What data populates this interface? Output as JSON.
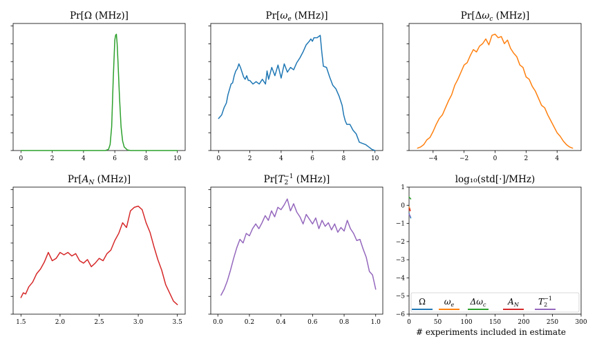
{
  "colors": {
    "blue": "#1f77b4",
    "orange": "#ff7f0e",
    "green": "#2ca02c",
    "red": "#d62728",
    "purple": "#9467bd"
  },
  "xlabel_bottom": "# experiments included in estimate",
  "chart_data": [
    {
      "type": "line",
      "title_parts": [
        "Pr[Ω (MHz)]"
      ],
      "xlim": [
        -0.5,
        10.5
      ],
      "ylim": [
        0,
        1.07
      ],
      "xticks": [
        "0",
        "2",
        "4",
        "6",
        "8",
        "10"
      ],
      "xtick_values": [
        0,
        2,
        4,
        6,
        8,
        10
      ],
      "yticks_count": 8,
      "color": "#2ca02c",
      "x": [
        0,
        5.4,
        5.6,
        5.7,
        5.8,
        5.9,
        6.0,
        6.05,
        6.1,
        6.15,
        6.2,
        6.3,
        6.4,
        6.5,
        6.6,
        6.8,
        7.0,
        10
      ],
      "y": [
        0,
        0,
        0.01,
        0.05,
        0.2,
        0.6,
        0.93,
        0.97,
        0.98,
        0.9,
        0.76,
        0.45,
        0.2,
        0.08,
        0.03,
        0.005,
        0,
        0
      ]
    },
    {
      "type": "line",
      "title_parts": [
        "Pr[",
        "ω",
        "e",
        " (MHz)]"
      ],
      "xlim": [
        -0.5,
        10.5
      ],
      "ylim": [
        0,
        1.07
      ],
      "xticks": [
        "0",
        "2",
        "4",
        "6",
        "8",
        "10"
      ],
      "xtick_values": [
        0,
        2,
        4,
        6,
        8,
        10
      ],
      "yticks_count": 8,
      "color": "#1f77b4",
      "x": [
        0,
        0.2,
        0.35,
        0.5,
        0.6,
        0.8,
        0.9,
        1.0,
        1.1,
        1.2,
        1.3,
        1.4,
        1.5,
        1.6,
        1.7,
        1.8,
        1.9,
        2.0,
        2.2,
        2.4,
        2.6,
        2.8,
        3.0,
        3.1,
        3.2,
        3.4,
        3.6,
        3.8,
        4.0,
        4.2,
        4.4,
        4.6,
        4.8,
        5.0,
        5.2,
        5.4,
        5.6,
        5.8,
        5.9,
        6.0,
        6.1,
        6.3,
        6.5,
        6.6,
        6.7,
        6.9,
        7.1,
        7.3,
        7.5,
        7.7,
        7.9,
        8.0,
        8.1,
        8.2,
        8.4,
        8.6,
        8.8,
        9.0,
        9.2,
        9.4,
        9.6,
        9.8,
        10.0
      ],
      "y": [
        0.27,
        0.3,
        0.36,
        0.4,
        0.47,
        0.56,
        0.57,
        0.63,
        0.67,
        0.69,
        0.73,
        0.7,
        0.66,
        0.62,
        0.6,
        0.63,
        0.59,
        0.59,
        0.56,
        0.58,
        0.56,
        0.6,
        0.56,
        0.67,
        0.6,
        0.7,
        0.63,
        0.72,
        0.61,
        0.73,
        0.66,
        0.7,
        0.68,
        0.74,
        0.78,
        0.83,
        0.89,
        0.92,
        0.94,
        0.92,
        0.95,
        0.95,
        0.97,
        0.83,
        0.71,
        0.7,
        0.62,
        0.55,
        0.52,
        0.46,
        0.38,
        0.3,
        0.25,
        0.22,
        0.22,
        0.17,
        0.14,
        0.07,
        0.06,
        0.05,
        0.03,
        0.01,
        0.0
      ]
    },
    {
      "type": "line",
      "title_parts": [
        "Pr[Δ",
        "ω",
        "c",
        " (MHz)]"
      ],
      "xlim": [
        -5.55,
        5.55
      ],
      "ylim": [
        0,
        1.07
      ],
      "xticks": [
        "−4",
        "−2",
        "0",
        "2",
        "4"
      ],
      "xtick_values": [
        -4,
        -2,
        0,
        2,
        4
      ],
      "yticks_count": 8,
      "color": "#ff7f0e",
      "x": [
        -5.0,
        -4.8,
        -4.6,
        -4.4,
        -4.2,
        -4.0,
        -3.8,
        -3.6,
        -3.4,
        -3.2,
        -3.0,
        -2.8,
        -2.6,
        -2.4,
        -2.2,
        -2.0,
        -1.8,
        -1.6,
        -1.4,
        -1.2,
        -1.0,
        -0.8,
        -0.6,
        -0.4,
        -0.2,
        0,
        0.2,
        0.4,
        0.6,
        0.8,
        1.0,
        1.2,
        1.4,
        1.6,
        1.8,
        2.0,
        2.2,
        2.4,
        2.6,
        2.8,
        3.0,
        3.2,
        3.4,
        3.6,
        3.8,
        4.0,
        4.2,
        4.4,
        4.6,
        4.8,
        5.0
      ],
      "y": [
        0.02,
        0.03,
        0.05,
        0.09,
        0.11,
        0.16,
        0.22,
        0.27,
        0.3,
        0.36,
        0.42,
        0.47,
        0.55,
        0.6,
        0.66,
        0.72,
        0.74,
        0.8,
        0.85,
        0.83,
        0.88,
        0.9,
        0.94,
        0.89,
        0.97,
        0.98,
        0.95,
        0.96,
        0.9,
        0.93,
        0.86,
        0.82,
        0.79,
        0.72,
        0.7,
        0.62,
        0.6,
        0.54,
        0.5,
        0.44,
        0.38,
        0.36,
        0.3,
        0.25,
        0.2,
        0.15,
        0.12,
        0.08,
        0.05,
        0.03,
        0.02
      ]
    },
    {
      "type": "line",
      "title_parts": [
        "Pr[",
        "A",
        "N",
        " (MHz)]"
      ],
      "xlim": [
        1.4,
        3.6
      ],
      "ylim": [
        0,
        1.07
      ],
      "xticks": [
        "1.5",
        "2.0",
        "2.5",
        "3.0",
        "3.5"
      ],
      "xtick_values": [
        1.5,
        2.0,
        2.5,
        3.0,
        3.5
      ],
      "yticks_count": 8,
      "color": "#d62728",
      "x": [
        1.5,
        1.53,
        1.56,
        1.6,
        1.65,
        1.7,
        1.75,
        1.8,
        1.85,
        1.9,
        1.95,
        2.0,
        2.05,
        2.1,
        2.15,
        2.2,
        2.25,
        2.3,
        2.35,
        2.4,
        2.45,
        2.5,
        2.55,
        2.6,
        2.65,
        2.7,
        2.75,
        2.8,
        2.85,
        2.9,
        2.95,
        3.0,
        3.05,
        3.1,
        3.15,
        3.2,
        3.25,
        3.3,
        3.35,
        3.4,
        3.45,
        3.5
      ],
      "y": [
        0.14,
        0.18,
        0.17,
        0.23,
        0.27,
        0.34,
        0.38,
        0.44,
        0.52,
        0.45,
        0.47,
        0.52,
        0.5,
        0.52,
        0.49,
        0.51,
        0.45,
        0.43,
        0.46,
        0.4,
        0.43,
        0.47,
        0.45,
        0.51,
        0.54,
        0.62,
        0.68,
        0.77,
        0.73,
        0.87,
        0.9,
        0.91,
        0.88,
        0.77,
        0.69,
        0.57,
        0.46,
        0.37,
        0.25,
        0.18,
        0.11,
        0.08
      ]
    },
    {
      "type": "line",
      "title_parts": [
        "Pr[",
        "T",
        "2",
        "−1",
        " (MHz)]"
      ],
      "xlim": [
        -0.045,
        1.045
      ],
      "ylim": [
        0,
        1.07
      ],
      "xticks": [
        "0.0",
        "0.2",
        "0.4",
        "0.6",
        "0.8",
        "1.0"
      ],
      "xtick_values": [
        0,
        0.2,
        0.4,
        0.6,
        0.8,
        1.0
      ],
      "yticks_count": 8,
      "color": "#9467bd",
      "x": [
        0.02,
        0.04,
        0.06,
        0.08,
        0.1,
        0.12,
        0.14,
        0.16,
        0.18,
        0.2,
        0.22,
        0.24,
        0.26,
        0.28,
        0.3,
        0.32,
        0.34,
        0.36,
        0.38,
        0.4,
        0.42,
        0.44,
        0.46,
        0.48,
        0.5,
        0.52,
        0.54,
        0.56,
        0.58,
        0.6,
        0.62,
        0.64,
        0.66,
        0.68,
        0.7,
        0.72,
        0.74,
        0.76,
        0.78,
        0.8,
        0.82,
        0.84,
        0.86,
        0.88,
        0.9,
        0.92,
        0.94,
        0.96,
        0.98,
        1.0
      ],
      "y": [
        0.16,
        0.21,
        0.28,
        0.37,
        0.47,
        0.56,
        0.63,
        0.6,
        0.68,
        0.66,
        0.72,
        0.76,
        0.72,
        0.77,
        0.83,
        0.79,
        0.87,
        0.82,
        0.9,
        0.88,
        0.92,
        0.97,
        0.87,
        0.93,
        0.86,
        0.82,
        0.76,
        0.84,
        0.8,
        0.76,
        0.81,
        0.72,
        0.79,
        0.74,
        0.77,
        0.71,
        0.76,
        0.69,
        0.73,
        0.7,
        0.79,
        0.72,
        0.68,
        0.62,
        0.63,
        0.55,
        0.48,
        0.36,
        0.33,
        0.21
      ]
    },
    {
      "type": "line",
      "title": "log₁₀(std[·]/MHz)",
      "xlim": [
        0,
        300
      ],
      "ylim": [
        -6,
        1
      ],
      "xticks": [
        "0",
        "50",
        "100",
        "150",
        "200",
        "250",
        "300"
      ],
      "xtick_values": [
        0,
        50,
        100,
        150,
        200,
        250,
        300
      ],
      "yticks": [
        "1",
        "0",
        "−1",
        "−2",
        "−3",
        "−4",
        "−5",
        "−6"
      ],
      "ytick_values": [
        1,
        0,
        -1,
        -2,
        -3,
        -4,
        -5,
        -6
      ],
      "legend_placement": "bottom",
      "series": [
        {
          "name_parts": [
            "Ω"
          ],
          "color": "#1f77b4",
          "x": [
            0,
            1,
            2,
            3
          ],
          "y": [
            -0.45,
            -0.55,
            -0.6,
            -0.7
          ]
        },
        {
          "name_parts": [
            "ω",
            "e"
          ],
          "color": "#ff7f0e",
          "x": [
            0,
            1,
            2
          ],
          "y": [
            -0.1,
            -0.15,
            -0.3
          ]
        },
        {
          "name_parts": [
            "Δω",
            "c"
          ],
          "color": "#2ca02c",
          "x": [
            0,
            1,
            2,
            3
          ],
          "y": [
            0.45,
            0.42,
            0.38,
            0.35
          ]
        },
        {
          "name_parts": [
            "A",
            "N"
          ],
          "color": "#d62728",
          "x": [
            0,
            1,
            2
          ],
          "y": [
            -0.25,
            -0.2,
            -0.3
          ]
        },
        {
          "name_parts": [
            "T",
            "2",
            "−1"
          ],
          "color": "#9467bd",
          "x": [
            0,
            1,
            2
          ],
          "y": [
            -0.5,
            -0.55,
            -0.6
          ]
        }
      ]
    }
  ]
}
